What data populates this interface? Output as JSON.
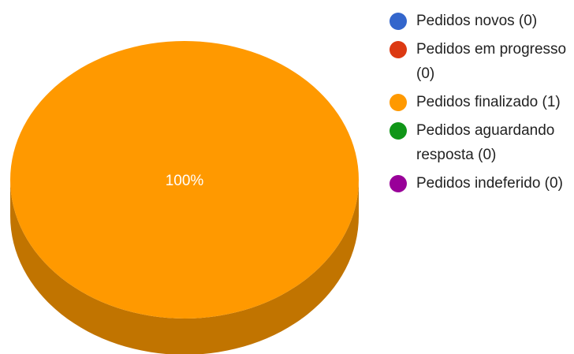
{
  "chart_data": {
    "type": "pie",
    "style": "3d",
    "slices": [
      {
        "label": "Pedidos novos (0)",
        "value": 0,
        "color": "#3366cc"
      },
      {
        "label": "Pedidos em progresso (0)",
        "value": 0,
        "color": "#dc3912"
      },
      {
        "label": "Pedidos finalizado (1)",
        "value": 1,
        "color": "#ff9900",
        "shade": "#c17400",
        "data_label": "100%"
      },
      {
        "label": "Pedidos aguardando resposta (0)",
        "value": 0,
        "color": "#109618"
      },
      {
        "label": "Pedidos indeferido (0)",
        "value": 0,
        "color": "#990099"
      }
    ],
    "legend_position": "right"
  }
}
